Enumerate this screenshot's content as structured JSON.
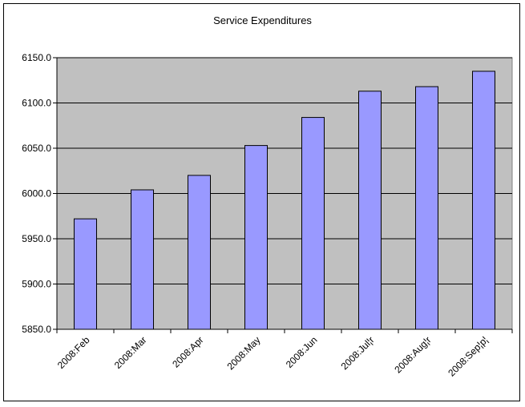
{
  "chart_data": {
    "type": "bar",
    "title": "Service Expenditures",
    "xlabel": "",
    "ylabel": "",
    "categories": [
      "2008:Feb",
      "2008:Mar",
      "2008:Apr",
      "2008:May",
      "2008:Jun",
      "2008:Jul¦r",
      "2008:Aug¦r",
      "2008:Sep¦p¦"
    ],
    "values": [
      5972,
      6004,
      6020,
      6053,
      6084,
      6113,
      6118,
      6135
    ],
    "ylim": [
      5850,
      6150
    ],
    "yticks": [
      5850,
      5900,
      5950,
      6000,
      6050,
      6100,
      6150
    ],
    "ytick_labels": [
      "5850.0",
      "5900.0",
      "5950.0",
      "6000.0",
      "6050.0",
      "6100.0",
      "6150.0"
    ],
    "grid": true,
    "legend": "none",
    "colors": {
      "bar": "#9999FF",
      "plot_background": "#C0C0C0",
      "gridline": "#000000"
    }
  }
}
